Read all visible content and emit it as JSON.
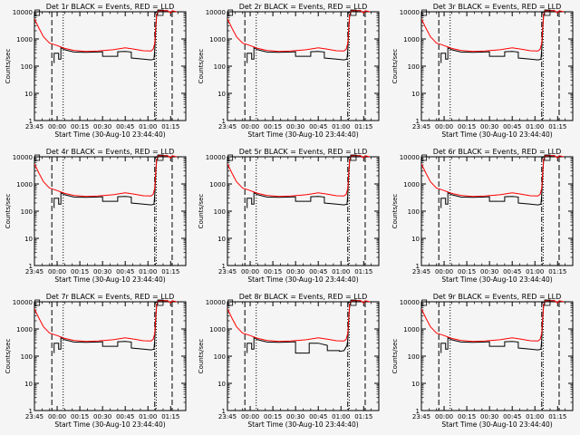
{
  "chart_data": {
    "type": "line",
    "layout": "3x3 grid",
    "shared": {
      "xlabel": "Start Time (30-Aug-10 23:44:40)",
      "ylabel": "Counts/sec",
      "x_ticks": [
        "23:45",
        "00:00",
        "00:15",
        "00:30",
        "00:45",
        "01:00",
        "01:15"
      ],
      "x_range_minutes_from_2345": [
        0,
        100
      ],
      "y_scale": "log",
      "y_range": [
        1,
        10000
      ],
      "y_ticks": [
        "1",
        "10",
        "100",
        "1000",
        "10000"
      ],
      "series": [
        {
          "name": "Events",
          "color": "#000000"
        },
        {
          "name": "LLD",
          "color": "#ff0000"
        }
      ],
      "vertical_markers": [
        {
          "style": "dashed",
          "x": 11.5
        },
        {
          "style": "dotted",
          "x": 19
        },
        {
          "style": "dashdot",
          "x": 79.5
        },
        {
          "style": "dotted",
          "x": 80.5
        },
        {
          "style": "dashed",
          "x": 91
        }
      ]
    },
    "panels": [
      {
        "title": "Det 1r BLACK = Events, RED = LLD",
        "variant": "normal"
      },
      {
        "title": "Det 2r BLACK = Events, RED = LLD",
        "variant": "normal"
      },
      {
        "title": "Det 3r BLACK = Events, RED = LLD",
        "variant": "normal"
      },
      {
        "title": "Det 4r BLACK = Events, RED = LLD",
        "variant": "normal"
      },
      {
        "title": "Det 5r BLACK = Events, RED = LLD",
        "variant": "normal"
      },
      {
        "title": "Det 6r BLACK = Events, RED = LLD",
        "variant": "normal"
      },
      {
        "title": "Det 7r BLACK = Events, RED = LLD",
        "variant": "normal"
      },
      {
        "title": "Det 8r BLACK = Events, RED = LLD",
        "variant": "det8"
      },
      {
        "title": "Det 9r BLACK = Events, RED = LLD",
        "variant": "normal"
      }
    ],
    "lld_curve": [
      [
        0,
        5500
      ],
      [
        3,
        2500
      ],
      [
        6,
        1200
      ],
      [
        10,
        700
      ],
      [
        14,
        600
      ],
      [
        20,
        450
      ],
      [
        26,
        380
      ],
      [
        34,
        350
      ],
      [
        42,
        360
      ],
      [
        52,
        400
      ],
      [
        60,
        470
      ],
      [
        66,
        420
      ],
      [
        72,
        370
      ],
      [
        77,
        360
      ],
      [
        78.5,
        420
      ],
      [
        79.5,
        700
      ],
      [
        80.2,
        2800
      ],
      [
        80.8,
        8000
      ],
      [
        82,
        11000
      ],
      [
        85,
        11000
      ],
      [
        88,
        11000
      ],
      [
        90,
        9000
      ],
      [
        91,
        11000
      ],
      [
        94,
        10000
      ]
    ],
    "events_curve": [
      [
        13,
        130
      ],
      [
        13,
        300
      ],
      [
        16,
        300
      ],
      [
        16,
        180
      ],
      [
        17.5,
        180
      ],
      [
        17.5,
        480
      ],
      [
        20,
        400
      ],
      [
        26,
        330
      ],
      [
        34,
        320
      ],
      [
        42,
        330
      ],
      [
        45,
        340
      ],
      [
        45,
        230
      ],
      [
        55,
        230
      ],
      [
        55,
        340
      ],
      [
        60,
        350
      ],
      [
        64,
        330
      ],
      [
        64,
        200
      ],
      [
        72,
        180
      ],
      [
        77,
        170
      ],
      [
        79,
        180
      ],
      [
        79.5,
        400
      ],
      [
        80.2,
        2500
      ],
      [
        80.8,
        8000
      ],
      [
        82,
        11000
      ],
      [
        85,
        11000
      ],
      [
        88,
        11000
      ]
    ],
    "events_curve_det8": [
      [
        13,
        130
      ],
      [
        13,
        300
      ],
      [
        16,
        300
      ],
      [
        16,
        180
      ],
      [
        17.5,
        180
      ],
      [
        17.5,
        480
      ],
      [
        20,
        400
      ],
      [
        26,
        330
      ],
      [
        34,
        320
      ],
      [
        42,
        330
      ],
      [
        45,
        340
      ],
      [
        45,
        130
      ],
      [
        54,
        130
      ],
      [
        54,
        300
      ],
      [
        60,
        300
      ],
      [
        66,
        250
      ],
      [
        66,
        160
      ],
      [
        74,
        160
      ],
      [
        74,
        150
      ],
      [
        77,
        160
      ],
      [
        79,
        250
      ],
      [
        79.5,
        400
      ],
      [
        80.2,
        2500
      ],
      [
        80.8,
        8000
      ],
      [
        82,
        11000
      ],
      [
        85,
        11000
      ],
      [
        88,
        11000
      ]
    ]
  }
}
